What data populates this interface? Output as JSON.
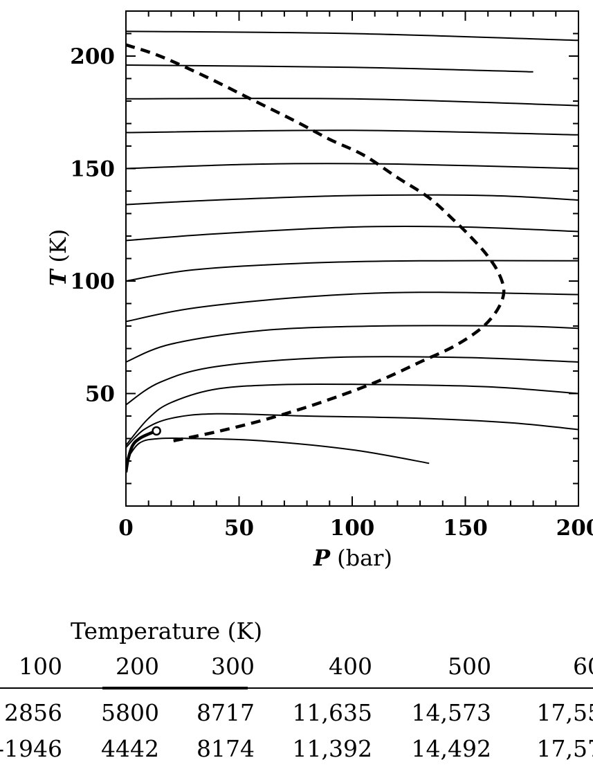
{
  "chart_data": {
    "type": "line",
    "xlabel_symbol": "P",
    "xlabel_unit": "(bar)",
    "ylabel_symbol": "T",
    "ylabel_unit": "(K)",
    "xlim": [
      0,
      200
    ],
    "ylim": [
      0,
      220
    ],
    "x_ticks": [
      0,
      50,
      100,
      150,
      200
    ],
    "x_tick_labels": [
      "0",
      "50",
      "100",
      "150",
      "200"
    ],
    "y_ticks": [
      50,
      100,
      150,
      200
    ],
    "y_tick_labels": [
      "50",
      "100",
      "150",
      "200"
    ],
    "grid": false,
    "isenthalps": [
      {
        "points": [
          [
            0,
            211
          ],
          [
            100,
            210
          ],
          [
            200,
            207
          ]
        ]
      },
      {
        "points": [
          [
            0,
            196
          ],
          [
            100,
            195
          ],
          [
            180,
            193
          ]
        ]
      },
      {
        "points": [
          [
            0,
            181
          ],
          [
            100,
            181
          ],
          [
            200,
            178
          ]
        ]
      },
      {
        "points": [
          [
            0,
            166
          ],
          [
            100,
            167
          ],
          [
            200,
            165
          ]
        ]
      },
      {
        "points": [
          [
            0,
            150
          ],
          [
            60,
            152
          ],
          [
            120,
            152
          ],
          [
            200,
            150
          ]
        ]
      },
      {
        "points": [
          [
            0,
            134
          ],
          [
            40,
            136
          ],
          [
            100,
            138
          ],
          [
            160,
            138
          ],
          [
            200,
            136
          ]
        ]
      },
      {
        "points": [
          [
            0,
            118
          ],
          [
            40,
            121
          ],
          [
            100,
            124
          ],
          [
            150,
            124
          ],
          [
            200,
            122
          ]
        ]
      },
      {
        "points": [
          [
            0,
            100
          ],
          [
            30,
            105
          ],
          [
            80,
            108
          ],
          [
            130,
            109
          ],
          [
            200,
            109
          ]
        ]
      },
      {
        "points": [
          [
            0,
            82
          ],
          [
            30,
            88
          ],
          [
            80,
            93
          ],
          [
            130,
            95
          ],
          [
            200,
            94
          ]
        ]
      },
      {
        "points": [
          [
            0,
            64
          ],
          [
            20,
            72
          ],
          [
            60,
            78
          ],
          [
            110,
            80
          ],
          [
            170,
            80
          ],
          [
            200,
            79
          ]
        ]
      },
      {
        "points": [
          [
            0,
            45
          ],
          [
            15,
            55
          ],
          [
            40,
            62
          ],
          [
            90,
            66
          ],
          [
            150,
            66
          ],
          [
            200,
            64
          ]
        ]
      },
      {
        "points": [
          [
            0,
            27
          ],
          [
            10,
            39
          ],
          [
            20,
            46
          ],
          [
            40,
            52
          ],
          [
            70,
            54
          ],
          [
            110,
            54
          ],
          [
            160,
            53
          ],
          [
            200,
            50
          ]
        ]
      },
      {
        "points": [
          [
            0,
            26
          ],
          [
            8,
            34
          ],
          [
            20,
            39
          ],
          [
            40,
            41
          ],
          [
            80,
            40
          ],
          [
            130,
            39
          ],
          [
            170,
            37
          ],
          [
            200,
            34
          ]
        ]
      },
      {
        "points": [
          [
            0,
            20
          ],
          [
            6,
            28
          ],
          [
            15,
            30
          ],
          [
            30,
            30
          ],
          [
            60,
            29
          ],
          [
            100,
            25
          ],
          [
            134,
            19
          ]
        ]
      }
    ],
    "saturation_curve": [
      [
        0,
        15
      ],
      [
        1,
        21
      ],
      [
        3,
        27
      ],
      [
        6,
        30
      ],
      [
        10,
        32
      ],
      [
        13.5,
        33.4
      ]
    ],
    "critical_point": [
      13.5,
      33.4
    ],
    "inversion_curve": [
      [
        21,
        29
      ],
      [
        40,
        33
      ],
      [
        60,
        38
      ],
      [
        80,
        44
      ],
      [
        100,
        51
      ],
      [
        115,
        57
      ],
      [
        130,
        64
      ],
      [
        145,
        71
      ],
      [
        157,
        79
      ],
      [
        164,
        87
      ],
      [
        167,
        95
      ],
      [
        165,
        103
      ],
      [
        160,
        111
      ],
      [
        153,
        119
      ],
      [
        145,
        127
      ],
      [
        134,
        137
      ],
      [
        120,
        146
      ],
      [
        105,
        156
      ],
      [
        90,
        163
      ],
      [
        75,
        171
      ],
      [
        55,
        181
      ],
      [
        35,
        191
      ],
      [
        15,
        200
      ],
      [
        0,
        205
      ]
    ]
  },
  "table": {
    "title": "Temperature (K)",
    "header": [
      "100",
      "200",
      "300",
      "400",
      "500",
      "60"
    ],
    "rows": [
      [
        "2856",
        "5800",
        "8717",
        "11,635",
        "14,573",
        "17,55"
      ],
      [
        "-1946",
        "4442",
        "8174",
        "11,392",
        "14,492",
        "17,57"
      ]
    ]
  }
}
